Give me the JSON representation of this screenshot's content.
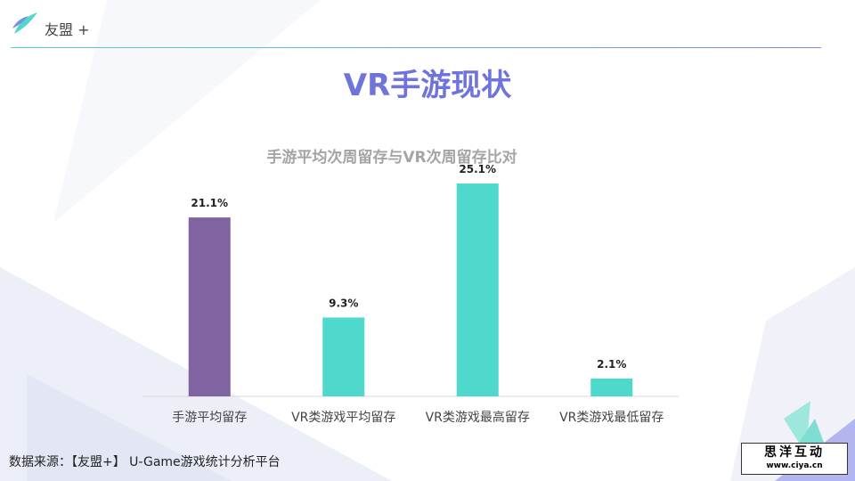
{
  "brand": {
    "name": "友盟",
    "plus": "+",
    "sub": ""
  },
  "page_title": "VR手游现状",
  "source_text": "数据来源：【友盟+】 U-Game游戏统计分析平台",
  "watermark": {
    "title": "思洋互动",
    "url": "www.ciya.cn"
  },
  "colors": {
    "title": "#6f73dc",
    "purple_bar": "#8064a2",
    "teal_bar": "#4fd9cc",
    "axis": "#d9d9d9"
  },
  "chart_data": {
    "type": "bar",
    "title": "手游平均次周留存与VR次周留存比对",
    "categories": [
      "手游平均留存",
      "VR类游戏平均留存",
      "VR类游戏最高留存",
      "VR类游戏最低留存"
    ],
    "values": [
      21.1,
      9.3,
      25.1,
      2.1
    ],
    "value_labels": [
      "21.1%",
      "9.3%",
      "25.1%",
      "2.1%"
    ],
    "bar_colors": [
      "#8064a2",
      "#4fd9cc",
      "#4fd9cc",
      "#4fd9cc"
    ],
    "ylim": [
      0,
      30
    ],
    "xlabel": "",
    "ylabel": "",
    "grid": false
  }
}
